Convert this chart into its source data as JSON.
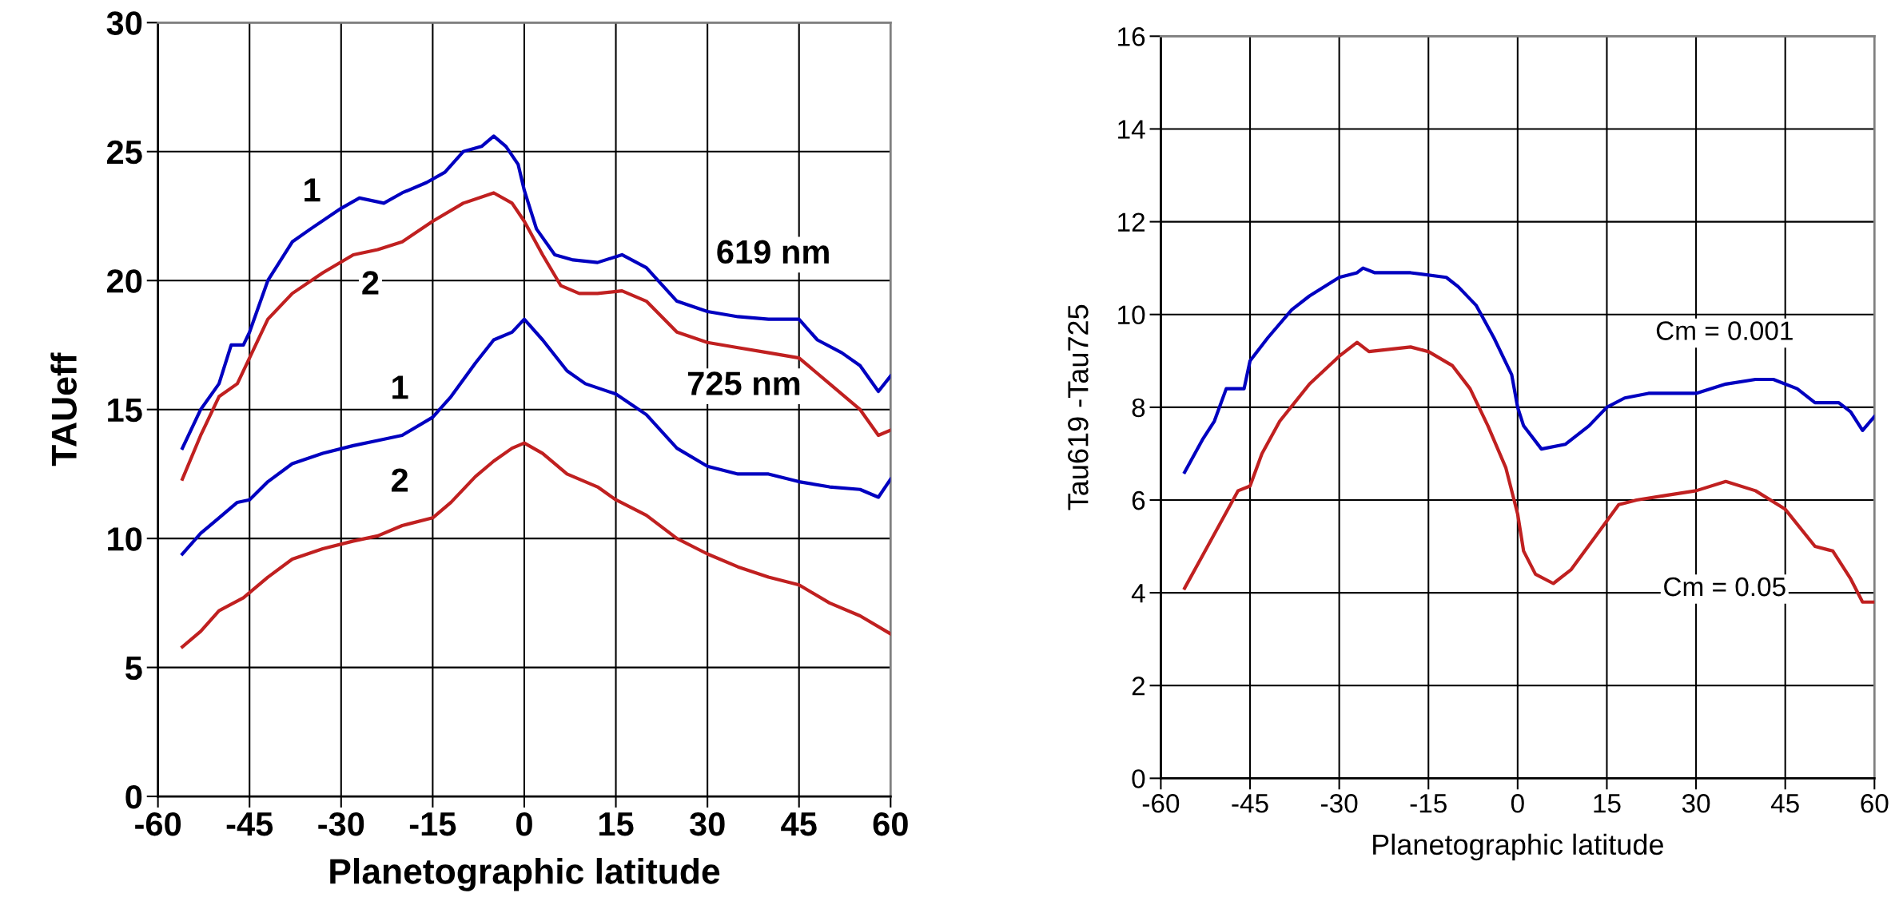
{
  "chart_data": [
    {
      "type": "line",
      "ylabel": "TAUeff",
      "xlabel": "Planetographic latitude",
      "xlim": [
        -60,
        60
      ],
      "xticks": [
        -60,
        -45,
        -30,
        -15,
        0,
        15,
        30,
        45,
        60
      ],
      "ylim": [
        0,
        30
      ],
      "yticks": [
        0,
        5,
        10,
        15,
        20,
        25,
        30
      ],
      "grid": true,
      "marker": "none",
      "line_style": "solid",
      "series": [
        {
          "color": "#0000c0",
          "x": [
            -56,
            -53,
            -50,
            -48,
            -46,
            -45,
            -42,
            -38,
            -35,
            -30,
            -27,
            -23,
            -20,
            -16,
            -13,
            -10,
            -7,
            -5,
            -3,
            -1,
            0,
            2,
            5,
            8,
            12,
            16,
            20,
            25,
            30,
            35,
            40,
            45,
            48,
            52,
            55,
            58,
            60
          ],
          "values": [
            13.5,
            15,
            16,
            17.5,
            17.5,
            18,
            20,
            21.5,
            22,
            22.8,
            23.2,
            23,
            23.4,
            23.8,
            24.2,
            25,
            25.2,
            25.6,
            25.2,
            24.5,
            23.5,
            22,
            21,
            20.8,
            20.7,
            21,
            20.5,
            19.2,
            18.8,
            18.6,
            18.5,
            18.5,
            17.7,
            17.2,
            16.7,
            15.7,
            16.3
          ]
        },
        {
          "color": "#c02020",
          "x": [
            -56,
            -53,
            -50,
            -47,
            -45,
            -42,
            -38,
            -33,
            -28,
            -24,
            -20,
            -15,
            -10,
            -5,
            -2,
            0,
            3,
            6,
            9,
            12,
            16,
            20,
            25,
            30,
            35,
            40,
            45,
            50,
            55,
            58,
            60
          ],
          "values": [
            12.3,
            14,
            15.5,
            16,
            17,
            18.5,
            19.5,
            20.3,
            21,
            21.2,
            21.5,
            22.3,
            23,
            23.4,
            23,
            22.3,
            21,
            19.8,
            19.5,
            19.5,
            19.6,
            19.2,
            18,
            17.6,
            17.4,
            17.2,
            17,
            16,
            15,
            14,
            14.2
          ]
        },
        {
          "color": "#0000c0",
          "x": [
            -56,
            -53,
            -50,
            -47,
            -45,
            -42,
            -38,
            -33,
            -28,
            -24,
            -20,
            -15,
            -12,
            -8,
            -5,
            -2,
            0,
            3,
            7,
            10,
            15,
            20,
            25,
            30,
            35,
            40,
            45,
            50,
            55,
            58,
            60
          ],
          "values": [
            9.4,
            10.2,
            10.8,
            11.4,
            11.5,
            12.2,
            12.9,
            13.3,
            13.6,
            13.8,
            14,
            14.7,
            15.5,
            16.8,
            17.7,
            18,
            18.5,
            17.7,
            16.5,
            16,
            15.6,
            14.8,
            13.5,
            12.8,
            12.5,
            12.5,
            12.2,
            12,
            11.9,
            11.6,
            12.3
          ]
        },
        {
          "color": "#c02020",
          "x": [
            -56,
            -53,
            -50,
            -46,
            -42,
            -38,
            -33,
            -28,
            -24,
            -20,
            -15,
            -12,
            -8,
            -5,
            -2,
            0,
            3,
            7,
            12,
            15,
            20,
            25,
            30,
            35,
            40,
            45,
            50,
            55,
            60
          ],
          "values": [
            5.8,
            6.4,
            7.2,
            7.7,
            8.5,
            9.2,
            9.6,
            9.9,
            10.1,
            10.5,
            10.8,
            11.4,
            12.4,
            13,
            13.5,
            13.7,
            13.3,
            12.5,
            12,
            11.5,
            10.9,
            10,
            9.4,
            8.9,
            8.5,
            8.2,
            7.5,
            7,
            6.3
          ]
        }
      ],
      "annotations": [
        "1",
        "2",
        "619 nm",
        "1",
        "2",
        "725 nm"
      ]
    },
    {
      "type": "line",
      "ylabel": "Tau619 -Tau725",
      "xlabel": "Planetographic latitude",
      "xlim": [
        -60,
        60
      ],
      "xticks": [
        -60,
        -45,
        -30,
        -15,
        0,
        15,
        30,
        45,
        60
      ],
      "ylim": [
        0,
        16
      ],
      "yticks": [
        0,
        2,
        4,
        6,
        8,
        10,
        12,
        14,
        16
      ],
      "grid": true,
      "marker": "none",
      "line_style": "solid",
      "series": [
        {
          "color": "#0000c0",
          "x": [
            -56,
            -53,
            -51,
            -49,
            -46,
            -45,
            -42,
            -38,
            -35,
            -30,
            -27,
            -26,
            -24,
            -18,
            -12,
            -10,
            -7,
            -4,
            -1,
            0,
            1,
            4,
            8,
            12,
            15,
            18,
            22,
            30,
            35,
            40,
            43,
            47,
            50,
            54,
            56,
            58,
            60
          ],
          "values": [
            6.6,
            7.3,
            7.7,
            8.4,
            8.4,
            9,
            9.5,
            10.1,
            10.4,
            10.8,
            10.9,
            11,
            10.9,
            10.9,
            10.8,
            10.6,
            10.2,
            9.5,
            8.7,
            8,
            7.6,
            7.1,
            7.2,
            7.6,
            8,
            8.2,
            8.3,
            8.3,
            8.5,
            8.6,
            8.6,
            8.4,
            8.1,
            8.1,
            7.9,
            7.5,
            7.8
          ]
        },
        {
          "color": "#c02020",
          "x": [
            -56,
            -53,
            -50,
            -47,
            -45,
            -43,
            -40,
            -35,
            -30,
            -27,
            -25,
            -18,
            -15,
            -11,
            -8,
            -5,
            -2,
            0,
            1,
            3,
            6,
            9,
            13,
            17,
            20,
            25,
            30,
            35,
            40,
            45,
            50,
            53,
            56,
            58,
            60
          ],
          "values": [
            4.1,
            4.8,
            5.5,
            6.2,
            6.3,
            7,
            7.7,
            8.5,
            9.1,
            9.4,
            9.2,
            9.3,
            9.2,
            8.9,
            8.4,
            7.6,
            6.7,
            5.7,
            4.9,
            4.4,
            4.2,
            4.5,
            5.2,
            5.9,
            6,
            6.1,
            6.2,
            6.4,
            6.2,
            5.8,
            5,
            4.9,
            4.3,
            3.8,
            3.8
          ]
        }
      ],
      "annotations": [
        "Cm = 0.001",
        "Cm = 0.05"
      ]
    }
  ]
}
